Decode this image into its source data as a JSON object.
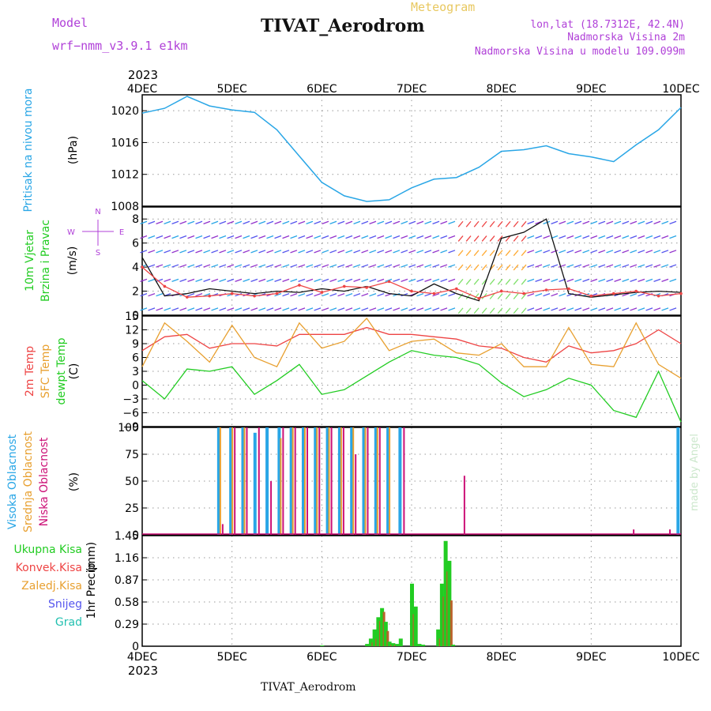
{
  "header": {
    "model_label": "Model",
    "model_name": "wrf−nmm_v3.9.1  e1km",
    "product": "Meteogram",
    "title": "TIVAT_Aerodrom",
    "lonlat": "lon,lat (18.7312E, 42.4N)",
    "elevation": "Nadmorska Visina 2m",
    "model_elevation": "Nadmorska Visina u modelu 109.099m",
    "watermark": "made by Angel",
    "bottom_title": "TIVAT_Aerodrom"
  },
  "colors": {
    "purple": "#b040d8",
    "gold": "#e8c860",
    "cyan": "#29a6e6",
    "green": "#22cc22",
    "red": "#ee4444",
    "orange": "#e8a030",
    "magenta": "#cc1177",
    "violet": "#5555ee",
    "teal": "#22c0b0"
  },
  "time_axis": {
    "year": "2023",
    "labels": [
      "4DEC",
      "5DEC",
      "6DEC",
      "7DEC",
      "8DEC",
      "9DEC",
      "10DEC"
    ]
  },
  "chart_data": [
    {
      "type": "line",
      "panel": "pressure",
      "ylabel": "Pritisak na nivou mora",
      "unit": "(hPa)",
      "ylim": [
        1008,
        1022
      ],
      "yticks": [
        "1008",
        "1012",
        "1016",
        "1020"
      ],
      "grid": true,
      "x": [
        "4DEC 00",
        "4DEC 06",
        "4DEC 12",
        "4DEC 18",
        "5DEC 00",
        "5DEC 06",
        "5DEC 12",
        "5DEC 18",
        "6DEC 00",
        "6DEC 06",
        "6DEC 12",
        "6DEC 18",
        "7DEC 00",
        "7DEC 06",
        "7DEC 12",
        "7DEC 18",
        "8DEC 00",
        "8DEC 06",
        "8DEC 12",
        "8DEC 18",
        "9DEC 00",
        "9DEC 06",
        "9DEC 12",
        "9DEC 18",
        "10DEC 00"
      ],
      "series": [
        {
          "values": [
            1019.7,
            1020.3,
            1021.8,
            1020.6,
            1020.1,
            1019.8,
            1017.6,
            1014.3,
            1011.0,
            1009.3,
            1008.6,
            1008.8,
            1010.3,
            1011.4,
            1011.6,
            1012.9,
            1014.9,
            1015.1,
            1015.6,
            1014.6,
            1014.2,
            1013.6,
            1015.7,
            1017.6,
            1020.4
          ]
        }
      ]
    },
    {
      "type": "line",
      "panel": "wind",
      "ylabel": [
        "10m Vjetar",
        "Brzina i Pravac"
      ],
      "unit": "(m/s)",
      "compass": [
        "N",
        "E",
        "S",
        "W"
      ],
      "ylim": [
        0,
        9
      ],
      "yticks": [
        "0",
        "2",
        "4",
        "6",
        "8"
      ],
      "grid": true,
      "series": [
        {
          "name": "10m Vjetar",
          "values": [
            4.8,
            1.6,
            1.8,
            2.2,
            2.0,
            1.8,
            2.0,
            1.9,
            2.2,
            2.0,
            2.4,
            1.8,
            1.6,
            2.6,
            1.8,
            1.2,
            6.4,
            6.9,
            8.0,
            1.8,
            1.5,
            1.7,
            1.9,
            2.0,
            1.9
          ]
        },
        {
          "name": "Brzina i Pravac",
          "values": [
            4.0,
            2.4,
            1.5,
            1.6,
            1.8,
            1.6,
            1.8,
            2.5,
            1.9,
            2.4,
            2.3,
            2.8,
            2.0,
            1.8,
            2.2,
            1.4,
            2.0,
            1.8,
            2.1,
            2.2,
            1.6,
            1.8,
            2.0,
            1.6,
            1.8
          ]
        }
      ]
    },
    {
      "type": "line",
      "panel": "temperature",
      "ylabel": [
        "2m Temp",
        "SFC Temp",
        "dewpt Temp"
      ],
      "unit": "(C)",
      "ylim": [
        -9,
        15
      ],
      "yticks": [
        "−9",
        "−6",
        "−3",
        "0",
        "3",
        "6",
        "9",
        "12",
        "15"
      ],
      "grid": true,
      "series": [
        {
          "name": "2m Temp",
          "values": [
            7.5,
            10.5,
            11.0,
            8.0,
            9.0,
            9.0,
            8.5,
            11.0,
            11.0,
            11.0,
            12.5,
            11.0,
            11.0,
            10.5,
            10.0,
            8.5,
            8.0,
            6.0,
            5.0,
            8.5,
            7.0,
            7.5,
            9.0,
            12.0,
            9.0
          ]
        },
        {
          "name": "SFC Temp",
          "values": [
            4.0,
            13.5,
            9.5,
            5.0,
            13.0,
            6.0,
            4.0,
            13.5,
            8.0,
            9.5,
            14.5,
            7.5,
            9.5,
            10.0,
            7.0,
            6.5,
            9.0,
            4.0,
            4.0,
            12.5,
            4.5,
            4.0,
            13.5,
            4.5,
            1.5
          ]
        },
        {
          "name": "dewpt Temp",
          "values": [
            1.0,
            -3.0,
            3.5,
            3.0,
            4.0,
            -2.0,
            1.0,
            4.5,
            -2.0,
            -1.0,
            2.0,
            5.0,
            7.5,
            6.5,
            6.0,
            4.5,
            0.5,
            -2.5,
            -1.0,
            1.5,
            0.0,
            -5.5,
            -7.0,
            3.0,
            -8.0
          ]
        }
      ]
    },
    {
      "type": "bar",
      "panel": "clouds",
      "ylabel": [
        "Visoka Oblacnost",
        "Srednja Oblacnost",
        "Niska Oblacnost"
      ],
      "unit": "(%)",
      "ylim": [
        0,
        100
      ],
      "yticks": [
        "0",
        "25",
        "50",
        "75",
        "100"
      ],
      "grid": true,
      "series": [
        {
          "name": "Visoka Oblacnost",
          "values": [
            0,
            100,
            100,
            100,
            95,
            100,
            100,
            100,
            100,
            100,
            100,
            100,
            100,
            100,
            100,
            100,
            100,
            0,
            0,
            0,
            0,
            0,
            0,
            0,
            0,
            0,
            0,
            0,
            0,
            0,
            0,
            0,
            0,
            0,
            0,
            0,
            0,
            0,
            0,
            100
          ]
        },
        {
          "name": "Srednja Oblacnost",
          "values": [
            0,
            100,
            100,
            100,
            0,
            0,
            90,
            100,
            100,
            100,
            100,
            100,
            100,
            100,
            100,
            100,
            0,
            0,
            0,
            0,
            0,
            0,
            0,
            0,
            0,
            0,
            0,
            0,
            0,
            0,
            0,
            0,
            0,
            0,
            0,
            0,
            0,
            0,
            0,
            0
          ]
        },
        {
          "name": "Niska Oblacnost",
          "values": [
            0,
            10,
            100,
            100,
            100,
            50,
            100,
            100,
            100,
            100,
            100,
            100,
            75,
            100,
            100,
            0,
            100,
            0,
            0,
            0,
            0,
            55,
            0,
            0,
            0,
            0,
            0,
            0,
            0,
            0,
            0,
            0,
            0,
            0,
            0,
            5,
            0,
            0,
            5,
            0
          ]
        }
      ]
    },
    {
      "type": "bar",
      "panel": "precipitation",
      "ylabel": "1hr Precip",
      "unit": "(mm)",
      "ylim": [
        0,
        1.45
      ],
      "yticks": [
        "0",
        "0.29",
        "0.58",
        "0.87",
        "1.16",
        "1.45"
      ],
      "legend": [
        "Ukupna Kisa",
        "Konvek.Kisa",
        "Zaledj.Kisa",
        "Snijeg",
        "Grad"
      ],
      "grid": true,
      "categories": [
        "6DEC 00",
        "6DEC 12",
        "6DEC 13",
        "6DEC 14",
        "6DEC 15",
        "6DEC 16",
        "6DEC 17",
        "6DEC 18",
        "6DEC 19",
        "6DEC 20",
        "6DEC 21",
        "7DEC 00",
        "7DEC 01",
        "7DEC 02",
        "7DEC 03",
        "7DEC 07",
        "7DEC 08",
        "7DEC 09",
        "7DEC 10",
        "7DEC 11"
      ],
      "series": [
        {
          "name": "Ukupna Kisa",
          "values": [
            0.01,
            0.03,
            0.1,
            0.22,
            0.38,
            0.5,
            0.32,
            0.06,
            0.04,
            0.03,
            0.1,
            0.82,
            0.52,
            0.03,
            0.02,
            0.22,
            0.82,
            1.38,
            1.12,
            0.02
          ]
        },
        {
          "name": "Konvek.Kisa",
          "values": [
            0,
            0,
            0.05,
            0.1,
            0.33,
            0.45,
            0.2,
            0.02,
            0.02,
            0,
            0,
            0.42,
            0,
            0,
            0,
            0.1,
            0.65,
            0.98,
            0.6,
            0
          ]
        },
        {
          "name": "Zaledj.Kisa",
          "values": [
            0,
            0,
            0,
            0,
            0,
            0,
            0,
            0,
            0,
            0,
            0,
            0,
            0,
            0,
            0,
            0,
            0,
            0,
            0,
            0
          ]
        },
        {
          "name": "Snijeg",
          "values": [
            0,
            0,
            0,
            0,
            0,
            0,
            0,
            0,
            0,
            0,
            0,
            0,
            0,
            0,
            0,
            0,
            0,
            0,
            0,
            0
          ]
        },
        {
          "name": "Grad",
          "values": [
            0,
            0,
            0,
            0,
            0,
            0,
            0,
            0,
            0,
            0,
            0,
            0,
            0,
            0,
            0,
            0,
            0,
            0,
            0,
            0
          ]
        }
      ]
    }
  ]
}
